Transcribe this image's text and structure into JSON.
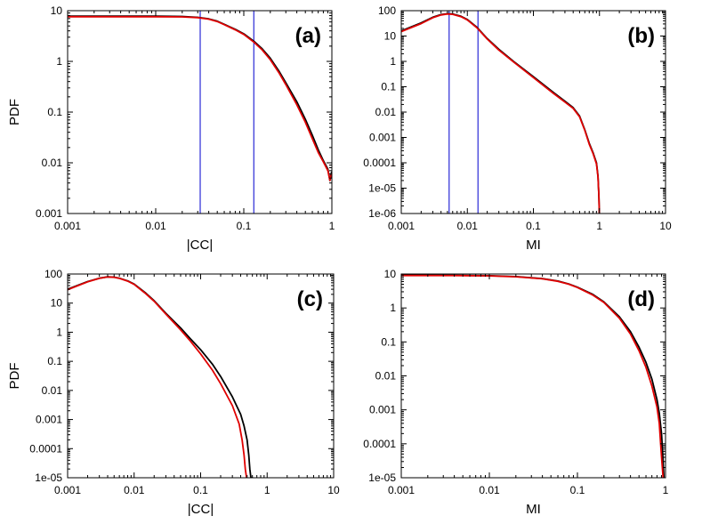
{
  "colors": {
    "series_black": "#000000",
    "series_red": "#e00000",
    "marker_line": "#2a2ad6"
  },
  "chart_data": [
    {
      "id": "a",
      "type": "line",
      "title": "",
      "panel_label": "(a)",
      "xlabel": "|CC|",
      "ylabel": "PDF",
      "xscale": "log",
      "yscale": "log",
      "xlim": [
        0.001,
        1
      ],
      "ylim": [
        0.001,
        10
      ],
      "xticks": [
        "0.001",
        "0.01",
        "0.1",
        "1"
      ],
      "yticks": [
        "0.001",
        "0.01",
        "0.1",
        "1",
        "10"
      ],
      "legend": "none",
      "vlines": [
        0.032,
        0.13
      ],
      "series": [
        {
          "name": "black",
          "color": "#000000",
          "x": [
            0.001,
            0.005,
            0.01,
            0.02,
            0.03,
            0.04,
            0.05,
            0.06,
            0.08,
            0.1,
            0.13,
            0.16,
            0.2,
            0.25,
            0.3,
            0.4,
            0.5,
            0.6,
            0.7,
            0.8,
            0.9,
            0.95,
            0.99
          ],
          "y": [
            7.8,
            7.8,
            7.8,
            7.7,
            7.4,
            6.9,
            6.2,
            5.4,
            4.3,
            3.5,
            2.5,
            1.8,
            1.15,
            0.65,
            0.38,
            0.16,
            0.072,
            0.035,
            0.018,
            0.011,
            0.0075,
            0.0045,
            0.0065
          ]
        },
        {
          "name": "red",
          "color": "#e00000",
          "x": [
            0.001,
            0.005,
            0.01,
            0.02,
            0.03,
            0.04,
            0.05,
            0.06,
            0.08,
            0.1,
            0.13,
            0.16,
            0.2,
            0.25,
            0.3,
            0.4,
            0.5,
            0.6,
            0.7,
            0.8,
            0.9,
            0.95,
            0.99
          ],
          "y": [
            7.6,
            7.6,
            7.6,
            7.55,
            7.3,
            6.8,
            6.1,
            5.3,
            4.2,
            3.4,
            2.4,
            1.72,
            1.08,
            0.6,
            0.35,
            0.14,
            0.063,
            0.03,
            0.016,
            0.0105,
            0.007,
            0.0045,
            0.006
          ]
        }
      ]
    },
    {
      "id": "b",
      "type": "line",
      "title": "",
      "panel_label": "(b)",
      "xlabel": "MI",
      "ylabel": "",
      "xscale": "log",
      "yscale": "log",
      "xlim": [
        0.001,
        10
      ],
      "ylim": [
        1e-06,
        100
      ],
      "xticks": [
        "0.001",
        "0.01",
        "0.1",
        "1",
        "10"
      ],
      "yticks": [
        "1e-06",
        "1e-05",
        "0.0001",
        "0.001",
        "0.01",
        "0.1",
        "1",
        "10",
        "100"
      ],
      "legend": "none",
      "vlines": [
        0.0053,
        0.0145
      ],
      "series": [
        {
          "name": "black",
          "color": "#000000",
          "x": [
            0.001,
            0.002,
            0.003,
            0.004,
            0.005,
            0.006,
            0.008,
            0.01,
            0.014,
            0.02,
            0.03,
            0.05,
            0.1,
            0.2,
            0.3,
            0.4,
            0.5,
            0.6,
            0.7,
            0.8,
            0.9,
            0.95,
            0.98,
            0.995
          ],
          "y": [
            16,
            33,
            55,
            70,
            76,
            74,
            60,
            45,
            22,
            8,
            3,
            1,
            0.25,
            0.06,
            0.027,
            0.015,
            0.007,
            0.002,
            0.0006,
            0.00025,
            0.0001,
            3e-05,
            5e-06,
            1e-06
          ]
        },
        {
          "name": "red",
          "color": "#e00000",
          "x": [
            0.001,
            0.002,
            0.003,
            0.004,
            0.005,
            0.006,
            0.008,
            0.01,
            0.014,
            0.02,
            0.03,
            0.05,
            0.1,
            0.2,
            0.3,
            0.4,
            0.5,
            0.6,
            0.7,
            0.8,
            0.9,
            0.95,
            0.98,
            0.995
          ],
          "y": [
            15,
            31,
            53,
            68,
            74,
            72,
            58,
            43,
            21,
            7.6,
            2.8,
            0.95,
            0.23,
            0.055,
            0.025,
            0.014,
            0.0065,
            0.0019,
            0.00055,
            0.00023,
            9e-05,
            2.8e-05,
            5e-06,
            1e-06
          ]
        }
      ]
    },
    {
      "id": "c",
      "type": "line",
      "title": "",
      "panel_label": "(c)",
      "xlabel": "|CC|",
      "ylabel": "PDF",
      "xscale": "log",
      "yscale": "log",
      "xlim": [
        0.001,
        10
      ],
      "ylim": [
        1e-05,
        100
      ],
      "xticks": [
        "0.001",
        "0.01",
        "0.1",
        "1",
        "10"
      ],
      "yticks": [
        "1e-05",
        "0.0001",
        "0.001",
        "0.01",
        "0.1",
        "1",
        "10",
        "100"
      ],
      "legend": "none",
      "vlines": [],
      "series": [
        {
          "name": "black",
          "color": "#000000",
          "x": [
            0.001,
            0.002,
            0.003,
            0.004,
            0.005,
            0.006,
            0.008,
            0.01,
            0.015,
            0.02,
            0.03,
            0.05,
            0.07,
            0.1,
            0.15,
            0.2,
            0.3,
            0.4,
            0.45,
            0.5,
            0.53,
            0.55,
            0.57,
            0.6
          ],
          "y": [
            30,
            55,
            72,
            80,
            78,
            72,
            58,
            45,
            22,
            12,
            4.5,
            1.4,
            0.6,
            0.25,
            0.08,
            0.03,
            0.006,
            0.0015,
            0.0006,
            0.0002,
            6e-05,
            2e-05,
            1e-05,
            1e-05
          ]
        },
        {
          "name": "red",
          "color": "#e00000",
          "x": [
            0.001,
            0.002,
            0.003,
            0.004,
            0.005,
            0.006,
            0.008,
            0.01,
            0.015,
            0.02,
            0.03,
            0.05,
            0.07,
            0.1,
            0.15,
            0.2,
            0.3,
            0.38,
            0.42,
            0.45,
            0.47,
            0.49
          ],
          "y": [
            29,
            54,
            71,
            79,
            77,
            71,
            57,
            44,
            21,
            11.5,
            4.2,
            1.2,
            0.5,
            0.18,
            0.05,
            0.017,
            0.003,
            0.0007,
            0.0002,
            6e-05,
            2e-05,
            1e-05
          ]
        }
      ]
    },
    {
      "id": "d",
      "type": "line",
      "title": "",
      "panel_label": "(d)",
      "xlabel": "MI",
      "ylabel": "",
      "xscale": "log",
      "yscale": "log",
      "xlim": [
        0.001,
        1
      ],
      "ylim": [
        1e-05,
        10
      ],
      "xticks": [
        "0.001",
        "0.01",
        "0.1",
        "1"
      ],
      "yticks": [
        "1e-05",
        "0.0001",
        "0.001",
        "0.01",
        "0.1",
        "1",
        "10"
      ],
      "legend": "none",
      "vlines": [],
      "series": [
        {
          "name": "black",
          "color": "#000000",
          "x": [
            0.001,
            0.005,
            0.01,
            0.02,
            0.04,
            0.06,
            0.08,
            0.1,
            0.15,
            0.2,
            0.3,
            0.4,
            0.5,
            0.6,
            0.7,
            0.8,
            0.85,
            0.9,
            0.93,
            0.96
          ],
          "y": [
            9.2,
            9.1,
            8.9,
            8.4,
            7.3,
            6.2,
            5.1,
            4.1,
            2.5,
            1.5,
            0.55,
            0.2,
            0.07,
            0.025,
            0.008,
            0.002,
            0.0008,
            0.0002,
            5e-05,
            1e-05
          ]
        },
        {
          "name": "red",
          "color": "#e00000",
          "x": [
            0.001,
            0.005,
            0.01,
            0.02,
            0.04,
            0.06,
            0.08,
            0.1,
            0.15,
            0.2,
            0.3,
            0.4,
            0.5,
            0.6,
            0.7,
            0.8,
            0.85,
            0.88,
            0.91,
            0.94
          ],
          "y": [
            9.0,
            8.95,
            8.8,
            8.3,
            7.2,
            6.1,
            5.0,
            4.0,
            2.4,
            1.45,
            0.5,
            0.17,
            0.055,
            0.018,
            0.005,
            0.0012,
            0.0004,
            0.0001,
            3e-05,
            1e-05
          ]
        }
      ]
    }
  ]
}
